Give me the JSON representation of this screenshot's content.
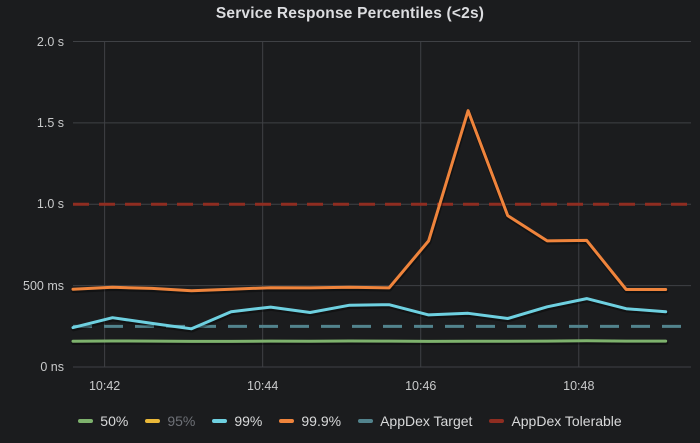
{
  "panel": {
    "title": "Service Response Percentiles (<2s)"
  },
  "colors": {
    "background": "#1b1c1e",
    "grid": "#3f4145",
    "tick_text": "#c9cacb",
    "legend_text": "#d8d9da",
    "legend_text_hidden": "#6e7177"
  },
  "chart_data": {
    "type": "line",
    "title": "Service Response Percentiles (<2s)",
    "xlabel": "",
    "ylabel": "",
    "grid": true,
    "legend_position": "bottom",
    "ylim": [
      0,
      2000
    ],
    "xlim_minutes": [
      41.6,
      49.42
    ],
    "y_ticks": [
      {
        "label": "0 ns",
        "value": 0
      },
      {
        "label": "500 ms",
        "value": 500
      },
      {
        "label": "1.0 s",
        "value": 1000
      },
      {
        "label": "1.5 s",
        "value": 1500
      },
      {
        "label": "2.0 s",
        "value": 2000
      }
    ],
    "x_ticks": [
      {
        "label": "10:42",
        "minute": 42
      },
      {
        "label": "10:44",
        "minute": 44
      },
      {
        "label": "10:46",
        "minute": 46
      },
      {
        "label": "10:48",
        "minute": 48
      }
    ],
    "x_minutes": [
      41.6,
      42.1,
      42.6,
      43.1,
      43.6,
      44.1,
      44.6,
      45.1,
      45.6,
      46.1,
      46.6,
      47.1,
      47.6,
      48.1,
      48.6,
      49.1
    ],
    "series": [
      {
        "name": "50%",
        "color": "#7EB26D",
        "style": "solid",
        "width": 3,
        "values": [
          158,
          160,
          159,
          157,
          157,
          159,
          158,
          160,
          159,
          157,
          158,
          158,
          159,
          161,
          159,
          159
        ]
      },
      {
        "name": "95%",
        "color": "#EAB839",
        "style": "solid",
        "width": 3,
        "hidden": true,
        "values": []
      },
      {
        "name": "99%",
        "color": "#6ED0E0",
        "style": "solid",
        "width": 3,
        "values": [
          242,
          303,
          268,
          235,
          340,
          368,
          335,
          380,
          383,
          320,
          330,
          298,
          370,
          420,
          358,
          340
        ]
      },
      {
        "name": "99.9%",
        "color": "#EF843C",
        "style": "solid",
        "width": 3,
        "values": [
          478,
          490,
          483,
          468,
          478,
          487,
          486,
          490,
          486,
          775,
          1575,
          930,
          775,
          778,
          476,
          476
        ]
      },
      {
        "name": "AppDex Target",
        "color": "#52838D",
        "style": "dashed",
        "width": 3,
        "constant": 250,
        "dash": "19 12"
      },
      {
        "name": "AppDex Tolerable",
        "color": "#8F2D21",
        "style": "dashed",
        "width": 3,
        "constant": 1000,
        "dash": "16 10"
      }
    ]
  }
}
